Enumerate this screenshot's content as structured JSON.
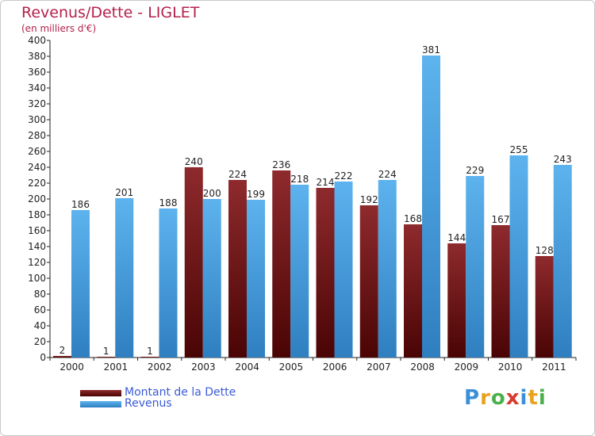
{
  "chart_data": {
    "type": "bar",
    "title": "Revenus/Dette - LIGLET",
    "subtitle": "(en milliers d'€)",
    "categories": [
      "2000",
      "2001",
      "2002",
      "2003",
      "2004",
      "2005",
      "2006",
      "2007",
      "2008",
      "2009",
      "2010",
      "2011"
    ],
    "series": [
      {
        "name": "Montant de la Dette",
        "color": "#7a1418",
        "values": [
          2,
          1,
          1,
          240,
          224,
          236,
          214,
          192,
          168,
          144,
          167,
          128
        ]
      },
      {
        "name": "Revenus",
        "color": "#4aa3e6",
        "values": [
          186,
          201,
          188,
          200,
          199,
          218,
          222,
          224,
          381,
          229,
          255,
          243
        ]
      }
    ],
    "y_ticks": [
      "0",
      "20",
      "40",
      "60",
      "80",
      "100",
      "120",
      "140",
      "160",
      "180",
      "200",
      "220",
      "240",
      "260",
      "280",
      "300",
      "320",
      "340",
      "360",
      "380",
      "400"
    ],
    "ylim": [
      0,
      400
    ],
    "grid": false,
    "legend_position": "bottom-left"
  },
  "logo": {
    "text": "Proxiti",
    "letter_colors": [
      "#3a8fd6",
      "#e8a21c",
      "#4bb04a",
      "#d93a2b",
      "#3a8fd6",
      "#e8a21c",
      "#4bb04a"
    ]
  }
}
